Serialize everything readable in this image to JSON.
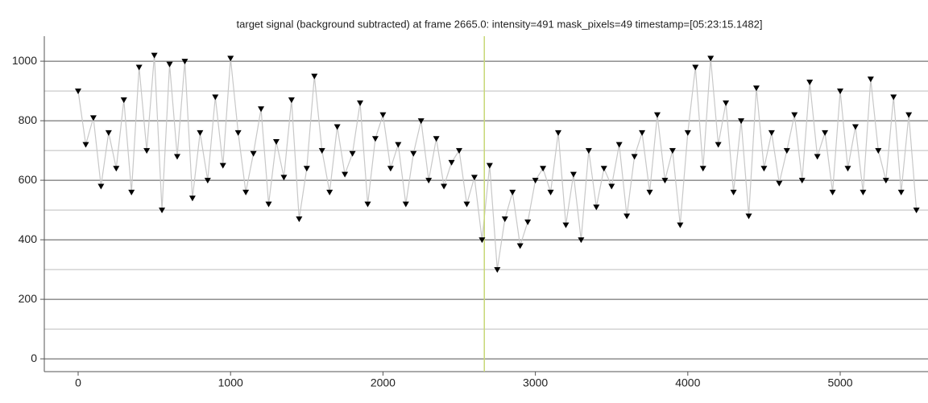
{
  "chart_data": {
    "type": "scatter",
    "title": "target signal (background subtracted) at frame 2665.0: intensity=491 mask_pixels=49 timestamp=[05:23:15.1482]",
    "x": [
      0,
      50,
      100,
      150,
      200,
      250,
      300,
      350,
      400,
      450,
      500,
      550,
      600,
      650,
      700,
      750,
      800,
      850,
      900,
      950,
      1000,
      1050,
      1100,
      1150,
      1200,
      1250,
      1300,
      1350,
      1400,
      1450,
      1500,
      1550,
      1600,
      1650,
      1700,
      1750,
      1800,
      1850,
      1900,
      1950,
      2000,
      2050,
      2100,
      2150,
      2200,
      2250,
      2300,
      2350,
      2400,
      2450,
      2500,
      2550,
      2600,
      2650,
      2700,
      2750,
      2800,
      2850,
      2900,
      2950,
      3000,
      3050,
      3100,
      3150,
      3200,
      3250,
      3300,
      3350,
      3400,
      3450,
      3500,
      3550,
      3600,
      3650,
      3700,
      3750,
      3800,
      3850,
      3900,
      3950,
      4000,
      4050,
      4100,
      4150,
      4200,
      4250,
      4300,
      4350,
      4400,
      4450,
      4500,
      4550,
      4600,
      4650,
      4700,
      4750,
      4800,
      4850,
      4900,
      4950,
      5000,
      5050,
      5100,
      5150,
      5200,
      5250,
      5300,
      5350,
      5400,
      5450,
      5500
    ],
    "values": [
      900,
      720,
      810,
      580,
      760,
      640,
      870,
      560,
      980,
      700,
      1020,
      500,
      990,
      680,
      1000,
      540,
      760,
      600,
      880,
      650,
      1010,
      760,
      560,
      690,
      840,
      520,
      730,
      610,
      870,
      470,
      640,
      950,
      700,
      560,
      780,
      620,
      690,
      860,
      520,
      740,
      820,
      640,
      720,
      520,
      690,
      800,
      600,
      740,
      580,
      660,
      700,
      520,
      610,
      400,
      650,
      300,
      470,
      560,
      380,
      460,
      600,
      640,
      560,
      760,
      450,
      620,
      400,
      700,
      510,
      640,
      580,
      720,
      480,
      680,
      760,
      560,
      820,
      600,
      700,
      450,
      760,
      980,
      640,
      1010,
      720,
      860,
      560,
      800,
      480,
      910,
      640,
      760,
      590,
      700,
      820,
      600,
      930,
      680,
      760,
      560,
      900,
      640,
      780,
      560,
      940,
      700,
      600,
      880,
      560,
      820,
      500
    ],
    "color": "#000000",
    "line_color": "#c8c8c8",
    "vline": 2665,
    "vline_color": "#c8d878",
    "xlim": [
      -222,
      5576
    ],
    "ylim": [
      -43,
      1084
    ],
    "xticks": [
      0,
      1000,
      2000,
      3000,
      4000,
      5000
    ],
    "yticks": [
      0,
      200,
      400,
      600,
      800,
      1000
    ],
    "yminorticks": [
      100,
      300,
      500,
      700,
      900
    ],
    "grid": true
  }
}
